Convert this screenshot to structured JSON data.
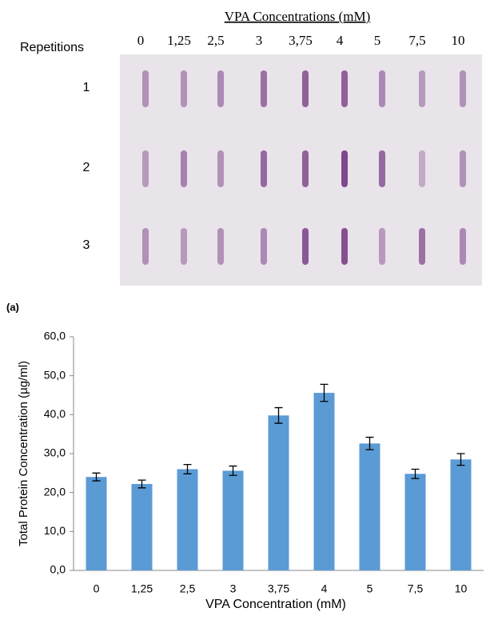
{
  "blot": {
    "title": "VPA Concentrations (mM)",
    "column_labels": [
      "0",
      "1,25",
      "2,5",
      "3",
      "3,75",
      "4",
      "5",
      "7,5",
      "10"
    ],
    "row_header": "Repetitions",
    "row_labels": [
      "1",
      "2",
      "3"
    ]
  },
  "panel_label": "(a)",
  "chart_data": {
    "type": "bar",
    "x_label": "VPA Concentration (mM)",
    "y_label": "Total Protein Concentration (µg/ml)",
    "categories": [
      "0",
      "1,25",
      "2,5",
      "3",
      "3,75",
      "4",
      "5",
      "7,5",
      "10"
    ],
    "values": [
      24.0,
      22.2,
      26.0,
      25.6,
      39.8,
      45.6,
      32.6,
      24.8,
      28.5
    ],
    "errors": [
      1.0,
      1.0,
      1.2,
      1.2,
      2.0,
      2.2,
      1.6,
      1.2,
      1.5
    ],
    "color": "#5b9bd5",
    "ylim": [
      0,
      60
    ],
    "yticks": [
      {
        "value": 0,
        "label": "0,0"
      },
      {
        "value": 10,
        "label": "10,0"
      },
      {
        "value": 20,
        "label": "20,0"
      },
      {
        "value": 30,
        "label": "30,0"
      },
      {
        "value": 40,
        "label": "40,0"
      },
      {
        "value": 50,
        "label": "50,0"
      },
      {
        "value": 60,
        "label": "60,0"
      }
    ],
    "grid": false
  }
}
